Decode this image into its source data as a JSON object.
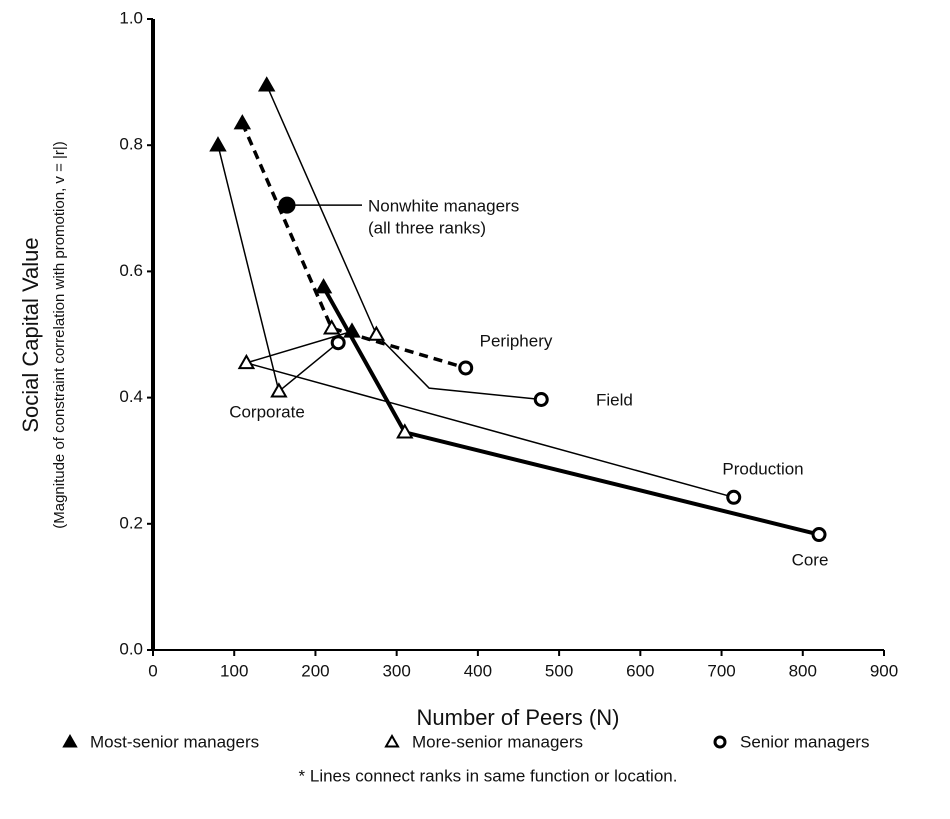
{
  "chart_data": {
    "type": "scatter",
    "y_label": "Social Capital Value",
    "y_sublabel": "(Magnitude of constraint correlation with promotion, v = |r|)",
    "x_label": "Number of Peers (N)",
    "footnote": "* Lines connect ranks in same function or location.",
    "xlim": [
      0,
      900
    ],
    "ylim": [
      0,
      1
    ],
    "xticks": [
      0,
      100,
      200,
      300,
      400,
      500,
      600,
      700,
      800,
      900
    ],
    "yticks": [
      {
        "value": 0,
        "label": "0.0"
      },
      0.2,
      0.4,
      0.6,
      0.8,
      {
        "value": 1,
        "label": "1.0"
      }
    ],
    "series": [
      {
        "name": "Most-senior managers",
        "marker": "filled-triangle",
        "color": "#000000",
        "x": [
          80,
          110,
          140,
          210,
          245
        ],
        "y": [
          0.8,
          0.835,
          0.895,
          0.575,
          0.505
        ]
      },
      {
        "name": "More-senior managers",
        "marker": "open-triangle",
        "color": "#000000",
        "x": [
          115,
          155,
          220,
          275,
          310
        ],
        "y": [
          0.455,
          0.41,
          0.51,
          0.5,
          0.345
        ]
      },
      {
        "name": "Senior managers",
        "marker": "open-circle",
        "color": "#000000",
        "x": [
          228,
          385,
          478,
          715,
          820
        ],
        "y": [
          0.487,
          0.447,
          0.397,
          0.242,
          0.183
        ]
      }
    ],
    "lines": [
      {
        "name": "Corporate",
        "style": "thin",
        "x": [
          80,
          155,
          228
        ],
        "y": [
          0.8,
          0.41,
          0.487
        ]
      },
      {
        "name": "Periphery",
        "style": "dashed",
        "x": [
          110,
          220,
          385
        ],
        "y": [
          0.835,
          0.51,
          0.447
        ]
      },
      {
        "name": "Field",
        "style": "thin",
        "x": [
          140,
          275,
          340,
          478
        ],
        "y": [
          0.895,
          0.5,
          0.415,
          0.397
        ]
      },
      {
        "name": "Production",
        "style": "thin",
        "x": [
          245,
          115,
          715
        ],
        "y": [
          0.505,
          0.455,
          0.242
        ]
      },
      {
        "name": "Core",
        "style": "thick",
        "x": [
          210,
          310,
          820
        ],
        "y": [
          0.575,
          0.345,
          0.183
        ]
      }
    ],
    "highlight": {
      "label": [
        "Nonwhite managers",
        "(all three ranks)"
      ],
      "marker": "filled-circle",
      "x": 165,
      "y": 0.705
    }
  }
}
